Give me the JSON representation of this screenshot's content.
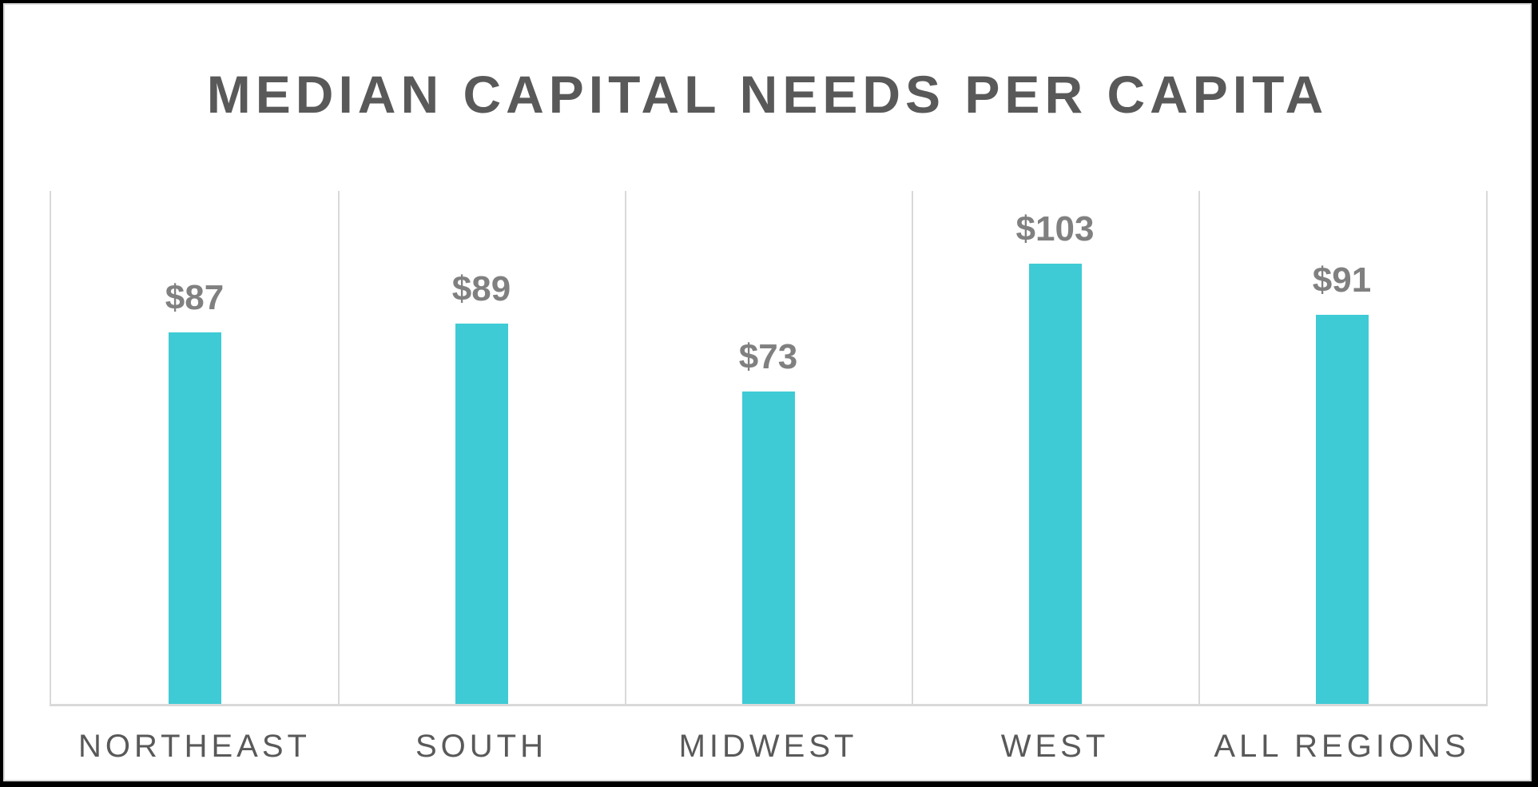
{
  "chart_data": {
    "type": "bar",
    "title": "MEDIAN CAPITAL NEEDS PER CAPITA",
    "categories": [
      "NORTHEAST",
      "SOUTH",
      "MIDWEST",
      "WEST",
      "ALL REGIONS"
    ],
    "values": [
      87,
      89,
      73,
      103,
      91
    ],
    "data_labels": [
      "$87",
      "$89",
      "$73",
      "$103",
      "$91"
    ],
    "xlabel": "",
    "ylabel": "",
    "ylim": [
      0,
      120
    ],
    "grid": "vertical category separators",
    "legend": "none",
    "bar_color": "#3ecbd5"
  },
  "colors": {
    "bar": "#3ecbd5",
    "title": "#595959",
    "data_label": "#808080",
    "category_label": "#595959",
    "grid": "#d9d9d9"
  }
}
